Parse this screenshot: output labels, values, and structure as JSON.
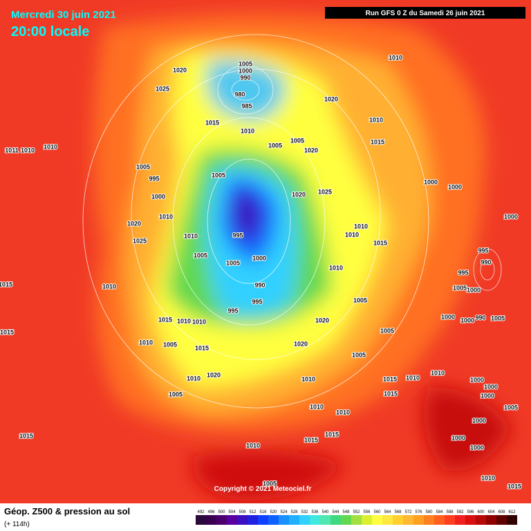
{
  "header": {
    "date": "Mercredi 30 juin 2021",
    "time": "20:00 locale",
    "run": "Run GFS 0 Z du Samedi 26 juin 2021"
  },
  "footer": {
    "title": "Géop. Z500 & pression au sol",
    "lead": "(+ 114h)",
    "copyright": "Copyright © 2021 Meteociel.fr"
  },
  "scale": {
    "values": [
      492,
      496,
      500,
      504,
      508,
      512,
      516,
      520,
      524,
      528,
      532,
      536,
      540,
      544,
      548,
      552,
      556,
      560,
      564,
      568,
      572,
      576,
      580,
      584,
      588,
      592,
      596,
      600,
      604,
      608,
      612
    ],
    "colors": [
      "#2a0a3a",
      "#3a0050",
      "#4b0070",
      "#5a00a0",
      "#3a10c0",
      "#2020e0",
      "#1040ff",
      "#1060ff",
      "#1890ff",
      "#20b0ff",
      "#30d0ff",
      "#40e8e0",
      "#50e8b0",
      "#40d880",
      "#60d850",
      "#a0e040",
      "#d8f030",
      "#ffff40",
      "#ffe840",
      "#ffd030",
      "#ffb830",
      "#ffa020",
      "#ff8020",
      "#ff6020",
      "#ff4020",
      "#f02020",
      "#d81010",
      "#b80808",
      "#900000",
      "#600000",
      "#300000"
    ]
  },
  "isobar_labels": [
    "1005",
    "1000",
    "990",
    "980",
    "985",
    "1020",
    "1025",
    "1010",
    "1020",
    "1015",
    "1010",
    "1010",
    "1005",
    "1005",
    "1020",
    "1015",
    "1011",
    "1010",
    "1010",
    "1005",
    "995",
    "1005",
    "1000",
    "1000",
    "1020",
    "1025",
    "1000",
    "1010",
    "1020",
    "1025",
    "1010",
    "1010",
    "1015",
    "995",
    "1000",
    "1010",
    "1005",
    "1005",
    "1000",
    "995",
    "990",
    "1010",
    "995",
    "1010",
    "990",
    "1005",
    "1000",
    "995",
    "1005",
    "995",
    "1020",
    "1015",
    "1010",
    "1010",
    "1000",
    "1000",
    "990",
    "1005",
    "1015",
    "1015",
    "1010",
    "1005",
    "1015",
    "1020",
    "1005",
    "1005",
    "1010",
    "1020",
    "1015",
    "1010",
    "1010",
    "1010",
    "1000",
    "1000",
    "1005",
    "1015",
    "1000",
    "1010",
    "1005",
    "1010",
    "1015",
    "1000",
    "1015",
    "1015",
    "1000",
    "1010",
    "1000",
    "1005",
    "1010",
    "1015"
  ]
}
